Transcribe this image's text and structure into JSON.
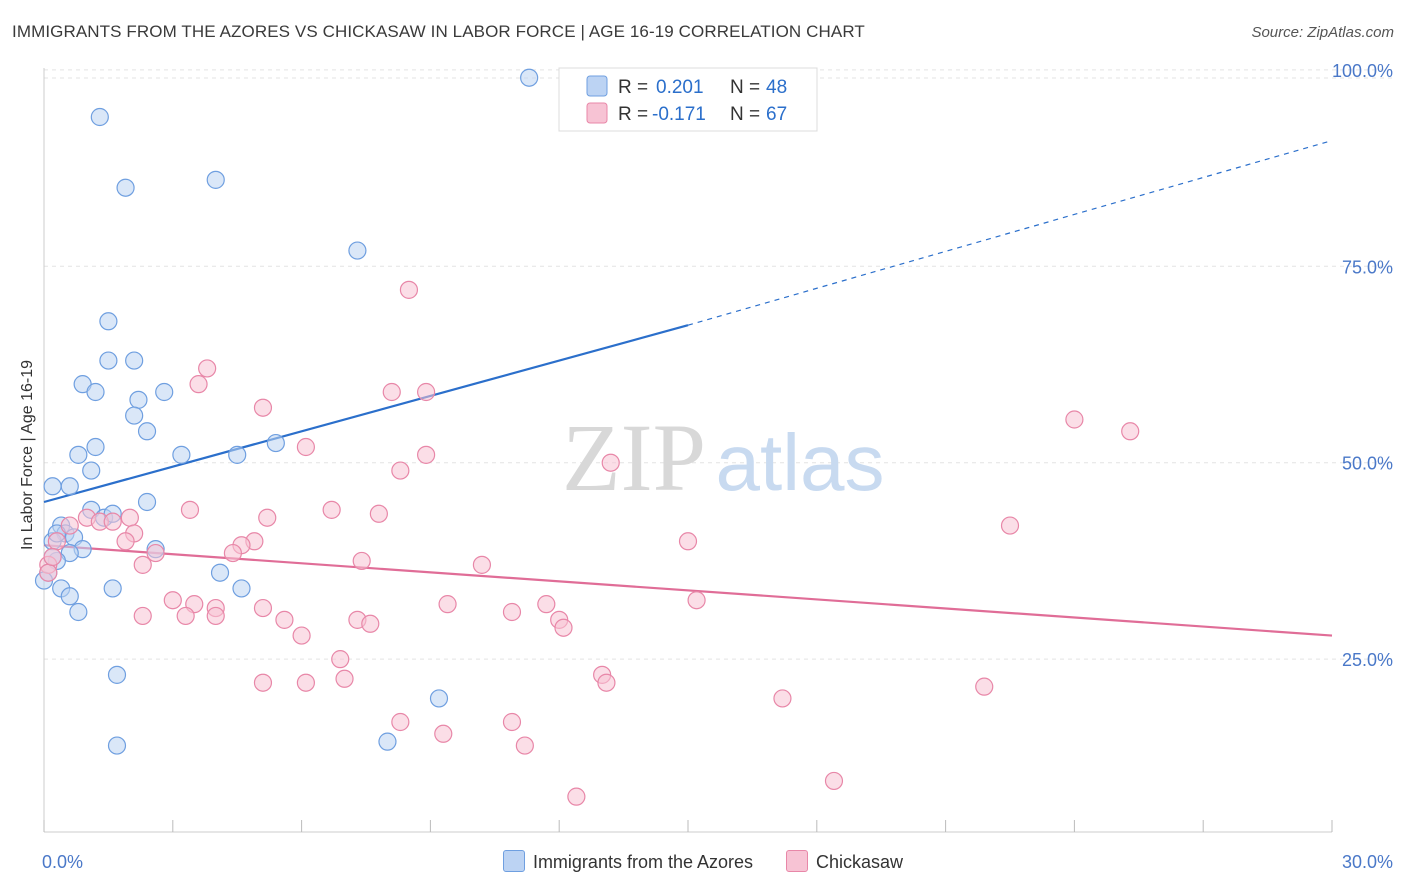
{
  "title": "IMMIGRANTS FROM THE AZORES VS CHICKASAW IN LABOR FORCE | AGE 16-19 CORRELATION CHART",
  "source": "Source: ZipAtlas.com",
  "watermark": {
    "zip": "ZIP",
    "atlas": "atlas"
  },
  "chart_data": {
    "type": "scatter",
    "ylabel": "In Labor Force | Age 16-19",
    "xlim": [
      0,
      30
    ],
    "ylim": [
      3,
      101
    ],
    "x_tick_labels": [
      "0.0%",
      "30.0%"
    ],
    "y_ticks": [
      {
        "value": 25,
        "label": "25.0%"
      },
      {
        "value": 50,
        "label": "50.0%"
      },
      {
        "value": 75,
        "label": "75.0%"
      },
      {
        "value": 100,
        "label": "100.0%"
      }
    ],
    "grid": true,
    "legend_top": {
      "placement": "top-center",
      "entries": [
        {
          "r_label": "R = ",
          "r_value": "0.201",
          "n_label": "N = ",
          "n_value": "48"
        },
        {
          "r_label": "R = ",
          "r_value": "-0.171",
          "n_label": "N = ",
          "n_value": "67"
        }
      ]
    },
    "series": [
      {
        "name": "Immigrants from the Azores",
        "color": "#6f9fe0",
        "fill": "#bcd3f3",
        "trend": {
          "x0": 0,
          "y0": 45,
          "x1": 15,
          "y1": 67.5,
          "dash_to_x": 30,
          "dash_to_y": 91,
          "color": "#2b6fcb"
        },
        "points": [
          [
            11.3,
            99
          ],
          [
            1.3,
            94
          ],
          [
            1.9,
            85
          ],
          [
            4,
            86
          ],
          [
            7.3,
            77
          ],
          [
            1.5,
            68
          ],
          [
            2.1,
            63
          ],
          [
            1.5,
            63
          ],
          [
            0.9,
            60
          ],
          [
            1.2,
            59
          ],
          [
            2.2,
            58
          ],
          [
            2.8,
            59
          ],
          [
            2.1,
            56
          ],
          [
            2.4,
            54
          ],
          [
            1.2,
            52
          ],
          [
            0.8,
            51
          ],
          [
            3.2,
            51
          ],
          [
            4.5,
            51
          ],
          [
            5.4,
            52.5
          ],
          [
            1.1,
            49
          ],
          [
            0.2,
            47
          ],
          [
            0.6,
            47
          ],
          [
            2.4,
            45
          ],
          [
            1.1,
            44
          ],
          [
            1.4,
            43
          ],
          [
            1.6,
            43.5
          ],
          [
            0.4,
            42
          ],
          [
            0.5,
            41
          ],
          [
            0.7,
            40.5
          ],
          [
            0.2,
            40
          ],
          [
            0.9,
            39
          ],
          [
            0.6,
            38.5
          ],
          [
            0.3,
            37.5
          ],
          [
            2.6,
            39
          ],
          [
            4.1,
            36
          ],
          [
            0.1,
            36
          ],
          [
            0,
            35
          ],
          [
            0.4,
            34
          ],
          [
            1.6,
            34
          ],
          [
            4.6,
            34
          ],
          [
            0.6,
            33
          ],
          [
            0.8,
            31
          ],
          [
            1.7,
            23
          ],
          [
            9.2,
            20
          ],
          [
            1.7,
            14
          ],
          [
            8,
            14.5
          ],
          [
            0.2,
            38
          ],
          [
            0.3,
            41
          ]
        ]
      },
      {
        "name": "Chickasaw",
        "color": "#e887a8",
        "fill": "#f7c3d4",
        "trend": {
          "x0": 0,
          "y0": 39.5,
          "x1": 30,
          "y1": 28,
          "color": "#e06d97"
        },
        "points": [
          [
            8.5,
            72
          ],
          [
            3.8,
            62
          ],
          [
            3.6,
            60
          ],
          [
            8.1,
            59
          ],
          [
            8.9,
            59
          ],
          [
            5.1,
            57
          ],
          [
            24,
            55.5
          ],
          [
            25.3,
            54
          ],
          [
            6.1,
            52
          ],
          [
            8.9,
            51
          ],
          [
            13.2,
            50
          ],
          [
            8.3,
            49
          ],
          [
            3.4,
            44
          ],
          [
            6.7,
            44
          ],
          [
            7.8,
            43.5
          ],
          [
            5.2,
            43
          ],
          [
            1,
            43
          ],
          [
            1.3,
            42.5
          ],
          [
            1.6,
            42.5
          ],
          [
            2,
            43
          ],
          [
            2.1,
            41
          ],
          [
            0.6,
            42
          ],
          [
            22.5,
            42
          ],
          [
            4.9,
            40
          ],
          [
            4.6,
            39.5
          ],
          [
            4.4,
            38.5
          ],
          [
            1.9,
            40
          ],
          [
            15,
            40
          ],
          [
            2.6,
            38.5
          ],
          [
            2.3,
            37
          ],
          [
            7.4,
            37.5
          ],
          [
            10.2,
            37
          ],
          [
            0.1,
            37
          ],
          [
            0.3,
            40
          ],
          [
            3,
            32.5
          ],
          [
            3.5,
            32
          ],
          [
            4,
            31.5
          ],
          [
            5.1,
            31.5
          ],
          [
            9.4,
            32
          ],
          [
            11.7,
            32
          ],
          [
            15.2,
            32.5
          ],
          [
            2.3,
            30.5
          ],
          [
            3.3,
            30.5
          ],
          [
            4,
            30.5
          ],
          [
            5.6,
            30
          ],
          [
            7.3,
            30
          ],
          [
            7.6,
            29.5
          ],
          [
            10.9,
            31
          ],
          [
            12,
            30
          ],
          [
            12.1,
            29
          ],
          [
            6,
            28
          ],
          [
            6.9,
            25
          ],
          [
            13,
            23
          ],
          [
            13.1,
            22
          ],
          [
            5.1,
            22
          ],
          [
            6.1,
            22
          ],
          [
            7,
            22.5
          ],
          [
            17.2,
            20
          ],
          [
            21.9,
            21.5
          ],
          [
            8.3,
            17
          ],
          [
            9.3,
            15.5
          ],
          [
            10.9,
            17
          ],
          [
            11.2,
            14
          ],
          [
            12.4,
            7.5
          ],
          [
            18.4,
            9.5
          ],
          [
            0.1,
            36
          ],
          [
            0.2,
            38
          ]
        ]
      }
    ]
  }
}
